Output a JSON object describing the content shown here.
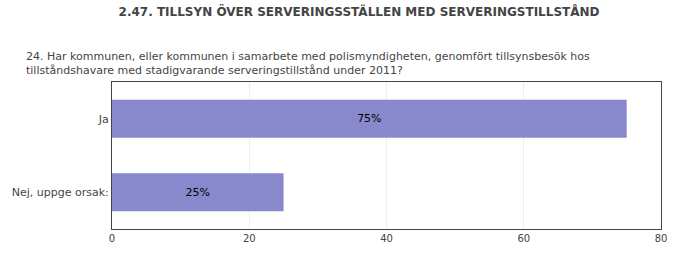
{
  "chart_data": {
    "type": "bar",
    "title": "2.47. TILLSYN ÖVER SERVERINGSSTÄLLEN MED SERVERINGSTILLSTÅND",
    "subtitle": "24. Har kommunen, eller kommunen i samarbete med polismyndigheten, genomfört tillsynsbesök hos\ntillståndshavare med stadigvarande serveringstillstånd under 2011?",
    "categories": [
      "Ja",
      "Nej, uppge orsak:"
    ],
    "values": [
      75,
      25
    ],
    "value_labels": [
      "75%",
      "25%"
    ],
    "color": "#8888cc",
    "orientation": "horizontal",
    "data_labels": true,
    "xlim": [
      0,
      80
    ],
    "xticks": [
      0,
      20,
      40,
      60,
      80
    ],
    "grid": true
  }
}
